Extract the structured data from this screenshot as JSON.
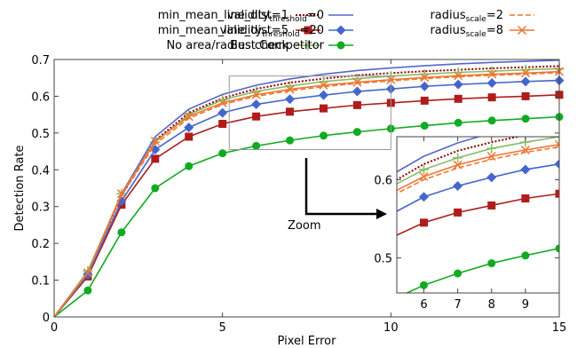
{
  "chart_data": {
    "type": "line",
    "title": "",
    "xlabel": "Pixel Error",
    "ylabel": "Detection Rate",
    "xlim": [
      0,
      15
    ],
    "ylim": [
      0,
      0.7
    ],
    "xticks": [
      0,
      5,
      10,
      15
    ],
    "yticks": [
      0,
      0.1,
      0.2,
      0.3,
      0.4,
      0.5,
      0.6,
      0.7
    ],
    "ytick_labels": [
      "0",
      "0.1",
      "0.2",
      "0.3",
      "0.4",
      "0.5",
      "0.6",
      "0.7"
    ],
    "x": [
      0,
      1,
      2,
      3,
      4,
      5,
      6,
      7,
      8,
      9,
      10,
      11,
      12,
      13,
      14,
      15
    ],
    "grid": false,
    "legend_position": "top",
    "series": [
      {
        "label": "min_mean_line_dist=1",
        "color": "#8b0000",
        "dash": "dotted",
        "marker": "none",
        "values": [
          0,
          0.12,
          0.33,
          0.48,
          0.555,
          0.595,
          0.62,
          0.637,
          0.648,
          0.657,
          0.663,
          0.668,
          0.672,
          0.676,
          0.679,
          0.682
        ]
      },
      {
        "label": "min_mean_line_dist=5",
        "color": "#b01c1c",
        "dash": "solid",
        "marker": "square",
        "values": [
          0,
          0.11,
          0.305,
          0.43,
          0.49,
          0.525,
          0.545,
          0.558,
          0.567,
          0.576,
          0.582,
          0.588,
          0.593,
          0.597,
          0.6,
          0.604
        ]
      },
      {
        "label": "No area/radius check",
        "color": "#88bb66",
        "dash": "solid",
        "marker": "plus",
        "values": [
          0,
          0.125,
          0.335,
          0.475,
          0.55,
          0.59,
          0.613,
          0.628,
          0.64,
          0.648,
          0.655,
          0.66,
          0.665,
          0.668,
          0.672,
          0.675
        ]
      },
      {
        "label_main": "validity",
        "label_sub": "threshold",
        "label_suffix": "=0",
        "color": "#5566cc",
        "dash": "solid",
        "marker": "none",
        "values": [
          0,
          0.115,
          0.335,
          0.49,
          0.565,
          0.605,
          0.63,
          0.647,
          0.66,
          0.67,
          0.677,
          0.683,
          0.688,
          0.692,
          0.695,
          0.698
        ]
      },
      {
        "label_main": "validity",
        "label_sub": "threshold",
        "label_suffix": "=20",
        "color": "#4466cc",
        "dash": "solid",
        "marker": "diamond",
        "values": [
          0,
          0.115,
          0.315,
          0.455,
          0.515,
          0.555,
          0.578,
          0.592,
          0.603,
          0.613,
          0.62,
          0.627,
          0.632,
          0.636,
          0.64,
          0.643
        ]
      },
      {
        "label": "Best Competitor",
        "color": "#11aa22",
        "dash": "solid",
        "marker": "circle",
        "values": [
          0,
          0.072,
          0.23,
          0.35,
          0.41,
          0.445,
          0.465,
          0.48,
          0.493,
          0.503,
          0.512,
          0.52,
          0.528,
          0.534,
          0.539,
          0.544
        ]
      },
      {
        "label_main": "radius",
        "label_sub": "scale",
        "label_suffix": "=2",
        "color": "#ee7733",
        "dash": "dashed",
        "marker": "none",
        "values": [
          0,
          0.12,
          0.33,
          0.47,
          0.54,
          0.578,
          0.6,
          0.615,
          0.626,
          0.635,
          0.642,
          0.648,
          0.653,
          0.657,
          0.66,
          0.664
        ]
      },
      {
        "label_main": "radius",
        "label_sub": "scale",
        "label_suffix": "=8",
        "color": "#ee7733",
        "dash": "solid",
        "marker": "x",
        "values": [
          0,
          0.12,
          0.335,
          0.478,
          0.545,
          0.582,
          0.604,
          0.619,
          0.63,
          0.638,
          0.645,
          0.651,
          0.656,
          0.66,
          0.663,
          0.667
        ]
      }
    ],
    "inset": {
      "xlim": [
        5.2,
        10
      ],
      "ylim": [
        0.455,
        0.655
      ],
      "xticks": [
        6,
        7,
        8,
        9
      ],
      "yticks": [
        0.5,
        0.6
      ],
      "ytick_labels": [
        "0.5",
        "0.6"
      ],
      "annotation": "Zoom"
    }
  }
}
